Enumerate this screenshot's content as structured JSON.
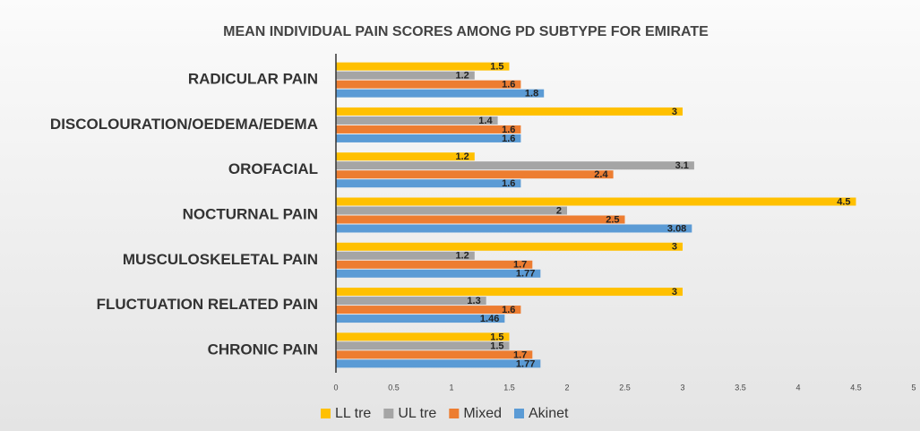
{
  "chart_data": {
    "type": "hbar",
    "title": "MEAN INDIVIDUAL PAIN SCORES AMONG PD SUBTYPE FOR EMIRATE",
    "categories": [
      "RADICULAR PAIN",
      "DISCOLOURATION/OEDEMA/EDEMA",
      "OROFACIAL",
      "NOCTURNAL PAIN",
      "MUSCULOSKELETAL PAIN",
      "FLUCTUATION RELATED PAIN",
      "CHRONIC PAIN"
    ],
    "series": [
      {
        "name": "LL tre",
        "color": "#ffc000",
        "values": [
          1.5,
          3,
          1.2,
          4.5,
          3,
          3,
          1.5
        ]
      },
      {
        "name": "UL tre",
        "color": "#a5a5a5",
        "values": [
          1.2,
          1.4,
          3.1,
          2,
          1.2,
          1.3,
          1.5
        ]
      },
      {
        "name": "Mixed",
        "color": "#ed7d31",
        "values": [
          1.6,
          1.6,
          2.4,
          2.5,
          1.7,
          1.6,
          1.7
        ]
      },
      {
        "name": "Akinet",
        "color": "#5b9bd5",
        "values": [
          1.8,
          1.6,
          1.6,
          3.08,
          1.77,
          1.46,
          1.77
        ]
      }
    ],
    "xlim": [
      0,
      5
    ],
    "xticks": [
      0,
      0.5,
      1,
      1.5,
      2,
      2.5,
      3,
      3.5,
      4,
      4.5,
      5
    ],
    "legend": "bottom"
  }
}
